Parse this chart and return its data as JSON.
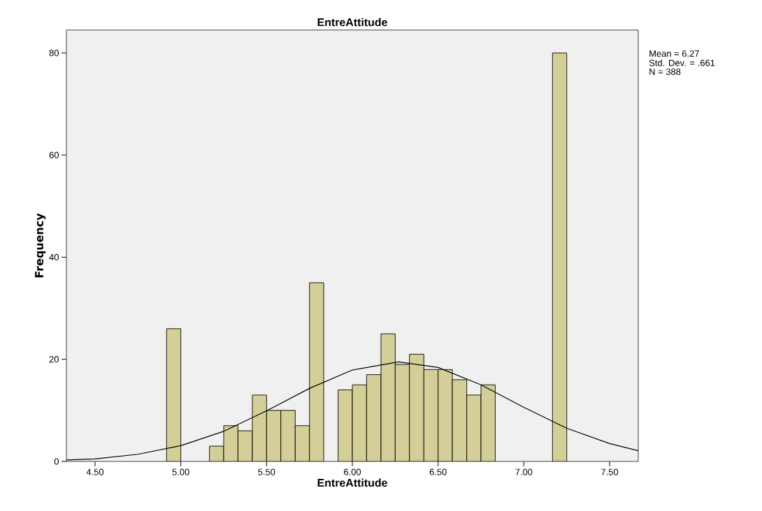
{
  "chart_data": {
    "type": "histogram",
    "title": "EntreAttitude",
    "xlabel": "EntreAttitude",
    "ylabel": "Frequency",
    "bins": [
      4.917,
      5.0,
      5.083,
      5.167,
      5.25,
      5.333,
      5.417,
      5.5,
      5.583,
      5.667,
      5.75,
      5.833,
      5.917,
      6.0,
      6.083,
      6.167,
      6.25,
      6.333,
      6.417,
      6.5,
      6.583,
      6.667,
      6.75,
      6.833,
      6.917,
      7.0,
      7.083,
      7.167,
      7.25
    ],
    "values": [
      26,
      0,
      0,
      3,
      7,
      6,
      13,
      10,
      10,
      7,
      35,
      0,
      14,
      15,
      17,
      25,
      19,
      21,
      18,
      18,
      16,
      13,
      15,
      0,
      0,
      0,
      0,
      80
    ],
    "color": "#d3cf96",
    "series": [
      {
        "type": "line",
        "color": "#000000",
        "x": [
          4.333,
          4.5,
          4.75,
          5.0,
          5.25,
          5.5,
          5.75,
          6.0,
          6.27,
          6.5,
          6.75,
          7.0,
          7.25,
          7.5,
          7.667
        ],
        "values": [
          0.3,
          0.5,
          1.4,
          3.1,
          5.9,
          9.9,
          14.3,
          17.9,
          19.5,
          18.4,
          15.0,
          10.6,
          6.5,
          3.5,
          2.1
        ]
      }
    ],
    "xlim": [
      4.333,
      7.667
    ],
    "ylim": [
      0,
      84.5
    ],
    "xticks": [
      {
        "value": 4.5,
        "label": "4.50"
      },
      {
        "value": 5.0,
        "label": "5.00"
      },
      {
        "value": 5.5,
        "label": "5.50"
      },
      {
        "value": 6.0,
        "label": "6.00"
      },
      {
        "value": 6.5,
        "label": "6.50"
      },
      {
        "value": 7.0,
        "label": "7.00"
      },
      {
        "value": 7.5,
        "label": "7.50"
      }
    ],
    "yticks": [
      0,
      20,
      40,
      60,
      80
    ],
    "grid": false,
    "annotations": [
      "Mean = 6.27",
      "Std. Dev. = .661",
      "N = 388"
    ]
  }
}
